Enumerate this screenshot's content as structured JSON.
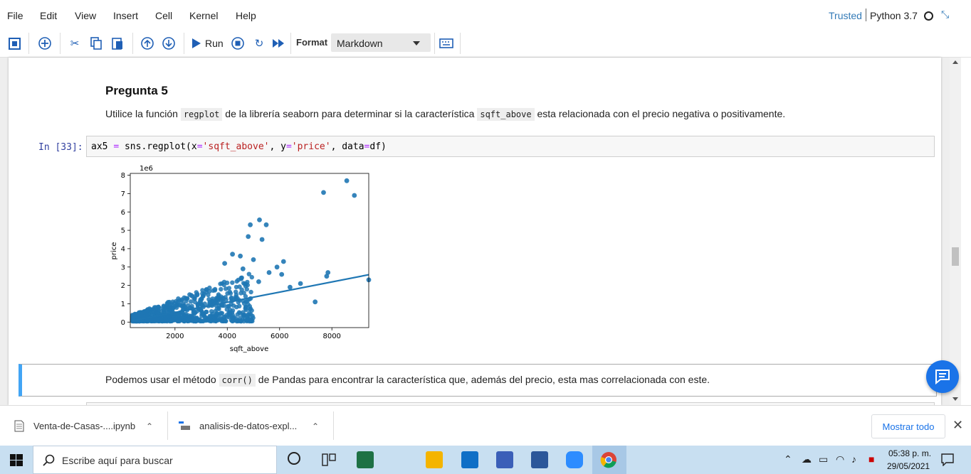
{
  "menubar": {
    "items": [
      "File",
      "Edit",
      "View",
      "Insert",
      "Cell",
      "Kernel",
      "Help"
    ],
    "trusted": "Trusted",
    "kernel": "Python 3.7"
  },
  "toolbar": {
    "run_label": "Run",
    "format_label": "Format",
    "cell_type": "Markdown"
  },
  "notebook": {
    "heading": "Pregunta 5",
    "md1": {
      "pre": "Utilice la función ",
      "code1": "regplot",
      "mid": " de la librería seaborn para determinar si la característica ",
      "code2": "sqft_above",
      "post": " esta relacionada con el precio negativa o positivamente."
    },
    "prompt": "In [33]:",
    "code": {
      "p1": "ax5 ",
      "eq1": "=",
      "p2": " sns.regplot(x",
      "eq2": "=",
      "s1": "'sqft_above'",
      "p3": ", y",
      "eq3": "=",
      "s2": "'price'",
      "p4": ", data",
      "eq4": "=",
      "p5": "df)"
    },
    "md2": {
      "pre": "Podemos usar el método ",
      "code": "corr()",
      "post": " de Pandas para encontrar la característica que, además del precio, esta mas correlacionada con este."
    }
  },
  "chart_data": {
    "type": "scatter",
    "title": "",
    "xlabel": "sqft_above",
    "ylabel": "price",
    "y_offset_label": "1e6",
    "xlim": [
      290,
      9410
    ],
    "ylim": [
      -0.3,
      8.1
    ],
    "x_ticks": [
      2000,
      4000,
      6000,
      8000
    ],
    "y_ticks": [
      0,
      1,
      2,
      3,
      4,
      5,
      6,
      7,
      8
    ],
    "point_color": "#1f77b4",
    "regression_line": {
      "x": [
        290,
        9410
      ],
      "y": [
        0.05,
        2.58
      ]
    },
    "outliers": [
      {
        "x": 8570,
        "y": 7.7
      },
      {
        "x": 8860,
        "y": 6.9
      },
      {
        "x": 7680,
        "y": 7.06
      },
      {
        "x": 9410,
        "y": 2.3
      },
      {
        "x": 7850,
        "y": 2.7
      },
      {
        "x": 7800,
        "y": 2.5
      },
      {
        "x": 7360,
        "y": 1.1
      },
      {
        "x": 5230,
        "y": 5.57
      },
      {
        "x": 5490,
        "y": 5.3
      },
      {
        "x": 5330,
        "y": 4.5
      },
      {
        "x": 4880,
        "y": 5.3
      },
      {
        "x": 4800,
        "y": 4.66
      },
      {
        "x": 6150,
        "y": 3.3
      },
      {
        "x": 6080,
        "y": 2.6
      },
      {
        "x": 5900,
        "y": 3.0
      },
      {
        "x": 5600,
        "y": 2.7
      },
      {
        "x": 4200,
        "y": 3.7
      },
      {
        "x": 5000,
        "y": 3.4
      },
      {
        "x": 4500,
        "y": 3.6
      },
      {
        "x": 6400,
        "y": 1.9
      },
      {
        "x": 6800,
        "y": 2.1
      },
      {
        "x": 3900,
        "y": 3.2
      },
      {
        "x": 5200,
        "y": 2.2
      },
      {
        "x": 4600,
        "y": 2.9
      }
    ],
    "dense_cloud": {
      "x_range": [
        370,
        5000
      ],
      "y_base": 0.05,
      "y_spread": 1.7,
      "count": 900
    }
  },
  "downloads": {
    "items": [
      "Venta-de-Casas-....ipynb",
      "analisis-de-datos-expl..."
    ],
    "show_all": "Mostrar todo"
  },
  "taskbar": {
    "search_placeholder": "Escribe aquí para buscar",
    "time": "05:38 p. m.",
    "date": "29/05/2021"
  }
}
